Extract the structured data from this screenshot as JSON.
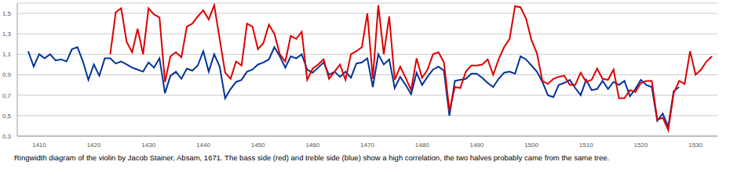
{
  "chart_data": {
    "type": "line",
    "caption": "Ringwidth diagram of the violin by Jacob Stainer, Absam, 1671. The bass side (red) and treble side (blue) show a high correlation, the two halves probably came from the same tree.",
    "grid": true,
    "xlim": [
      1406,
      1534
    ],
    "xticks": [
      1410,
      1420,
      1430,
      1440,
      1450,
      1460,
      1470,
      1480,
      1490,
      1500,
      1510,
      1520,
      1530
    ],
    "ylim": [
      0.3,
      1.6
    ],
    "yticks": [
      {
        "value": 0.3,
        "label": "0,3"
      },
      {
        "value": 0.5,
        "label": "0,5"
      },
      {
        "value": 0.7,
        "label": "0,7"
      },
      {
        "value": 0.9,
        "label": "0,9"
      },
      {
        "value": 1.1,
        "label": "1,1"
      },
      {
        "value": 1.3,
        "label": "1,3"
      },
      {
        "value": 1.5,
        "label": "1,5"
      }
    ],
    "x": [
      1408,
      1409,
      1410,
      1411,
      1412,
      1413,
      1414,
      1415,
      1416,
      1417,
      1418,
      1419,
      1420,
      1421,
      1422,
      1423,
      1424,
      1425,
      1426,
      1427,
      1428,
      1429,
      1430,
      1431,
      1432,
      1433,
      1434,
      1435,
      1436,
      1437,
      1438,
      1439,
      1440,
      1441,
      1442,
      1443,
      1444,
      1445,
      1446,
      1447,
      1448,
      1449,
      1450,
      1451,
      1452,
      1453,
      1454,
      1455,
      1456,
      1457,
      1458,
      1459,
      1460,
      1461,
      1462,
      1463,
      1464,
      1465,
      1466,
      1467,
      1468,
      1469,
      1470,
      1471,
      1472,
      1473,
      1474,
      1475,
      1476,
      1477,
      1478,
      1479,
      1480,
      1481,
      1482,
      1483,
      1484,
      1485,
      1486,
      1487,
      1488,
      1489,
      1490,
      1491,
      1492,
      1493,
      1494,
      1495,
      1496,
      1497,
      1498,
      1499,
      1500,
      1501,
      1502,
      1503,
      1504,
      1505,
      1506,
      1507,
      1508,
      1509,
      1510,
      1511,
      1512,
      1513,
      1514,
      1515,
      1516,
      1517,
      1518,
      1519,
      1520,
      1521,
      1522,
      1523,
      1524,
      1525,
      1526,
      1527,
      1528,
      1529,
      1530,
      1531,
      1532,
      1533
    ],
    "series": [
      {
        "color": "#003399",
        "values": [
          1.13,
          0.98,
          1.1,
          1.06,
          1.1,
          1.04,
          1.05,
          1.03,
          1.15,
          1.17,
          1.03,
          0.85,
          1.0,
          0.89,
          1.06,
          1.06,
          1.01,
          1.03,
          1.0,
          0.97,
          0.95,
          0.93,
          1.02,
          0.97,
          1.06,
          0.72,
          0.89,
          0.93,
          0.86,
          0.96,
          0.94,
          0.99,
          1.13,
          0.93,
          1.1,
          0.98,
          0.67,
          0.76,
          0.83,
          0.85,
          0.93,
          0.95,
          1.0,
          1.02,
          1.05,
          1.17,
          1.08,
          0.97,
          1.08,
          1.06,
          1.1,
          0.95,
          0.92,
          0.97,
          1.02,
          0.9,
          0.93,
          0.88,
          0.93,
          0.87,
          1.01,
          1.02,
          1.06,
          0.78,
          1.1,
          1.0,
          1.05,
          0.77,
          0.88,
          0.8,
          0.71,
          0.92,
          0.8,
          0.88,
          0.95,
          0.98,
          0.94,
          0.5,
          0.84,
          0.85,
          0.86,
          0.91,
          0.91,
          0.87,
          0.82,
          0.78,
          0.86,
          0.92,
          0.93,
          0.91,
          1.08,
          1.05,
          0.99,
          0.93,
          0.83,
          0.7,
          0.68,
          0.8,
          0.82,
          0.85,
          0.77,
          0.7,
          0.85,
          0.75,
          0.76,
          0.84,
          0.76,
          0.83,
          0.8,
          0.84,
          0.69,
          0.76,
          0.85,
          0.8,
          0.78,
          0.45,
          0.52,
          0.39,
          0.74,
          0.78,
          null,
          null,
          null,
          null,
          null,
          null
        ]
      },
      {
        "color": "#dd0000",
        "values": [
          null,
          null,
          null,
          null,
          null,
          null,
          null,
          null,
          null,
          null,
          null,
          null,
          null,
          null,
          null,
          1.1,
          1.51,
          1.55,
          1.22,
          1.12,
          1.35,
          1.1,
          1.55,
          1.49,
          1.46,
          0.83,
          1.08,
          1.12,
          1.07,
          1.37,
          1.4,
          1.47,
          1.53,
          1.44,
          1.58,
          1.25,
          0.92,
          0.86,
          1.03,
          0.99,
          1.4,
          1.37,
          1.15,
          1.21,
          1.39,
          1.3,
          1.1,
          1.03,
          1.28,
          1.25,
          1.32,
          0.85,
          0.96,
          1.0,
          1.05,
          0.86,
          0.93,
          1.0,
          0.85,
          1.1,
          1.13,
          1.17,
          1.5,
          0.86,
          1.58,
          1.1,
          1.47,
          0.85,
          0.98,
          0.87,
          0.75,
          1.06,
          0.87,
          0.95,
          1.1,
          1.12,
          1.02,
          0.55,
          0.78,
          0.77,
          0.93,
          0.99,
          0.99,
          1.0,
          1.05,
          0.9,
          1.05,
          1.17,
          1.25,
          1.57,
          1.56,
          1.45,
          1.24,
          1.11,
          0.84,
          0.81,
          0.86,
          0.88,
          0.89,
          0.8,
          0.8,
          0.92,
          0.83,
          0.85,
          0.96,
          0.86,
          0.85,
          0.95,
          0.67,
          0.67,
          0.75,
          0.73,
          0.82,
          0.84,
          0.84,
          0.46,
          0.48,
          0.36,
          0.72,
          0.84,
          0.81,
          1.13,
          0.9,
          0.95,
          1.03,
          1.08
        ]
      }
    ]
  }
}
